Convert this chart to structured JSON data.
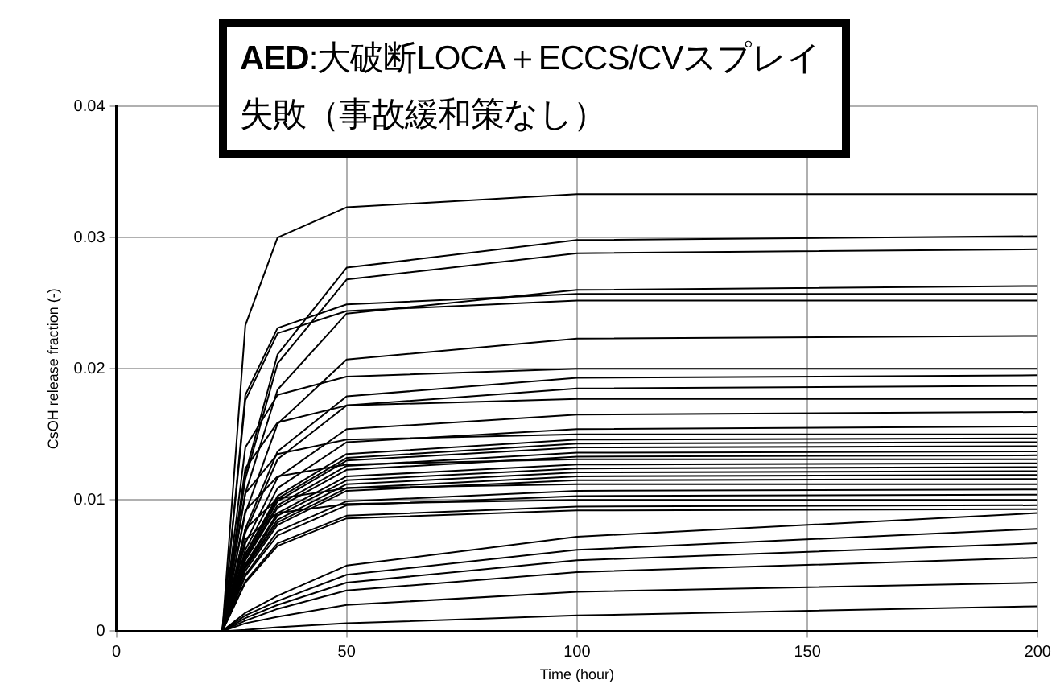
{
  "chart_data": {
    "type": "line",
    "title": "AED:大破断LOCA＋ECCS/CVスプレイ失敗（事故緩和策なし）",
    "xlabel": "Time (hour)",
    "ylabel": "CsOH release fraction (-)",
    "x": [
      0,
      23,
      28,
      35,
      50,
      100,
      200
    ],
    "xlim": [
      0,
      200
    ],
    "xticks": [
      0,
      50,
      100,
      150,
      200
    ],
    "ylim": [
      0,
      0.04
    ],
    "yticks": [
      0,
      0.01,
      0.02,
      0.03,
      0.04
    ],
    "grid": true,
    "legend": false,
    "marker": "none",
    "line_style": "solid",
    "series": [
      {
        "color": "#000000",
        "values": [
          0,
          0,
          0.0233,
          0.03,
          0.0323,
          0.0333,
          0.0333
        ]
      },
      {
        "color": "#000000",
        "values": [
          0,
          0,
          0.018,
          0.0231,
          0.0249,
          0.0257,
          0.0257
        ]
      },
      {
        "color": "#000000",
        "values": [
          0,
          0,
          0.0176,
          0.0227,
          0.0244,
          0.0252,
          0.0252
        ]
      },
      {
        "color": "#000000",
        "values": [
          0,
          0,
          0.014,
          0.018,
          0.0194,
          0.02,
          0.02
        ]
      },
      {
        "color": "#000000",
        "values": [
          0,
          0,
          0.0124,
          0.0159,
          0.0172,
          0.0177,
          0.0177
        ]
      },
      {
        "color": "#000000",
        "values": [
          0,
          0,
          0.0105,
          0.0135,
          0.0146,
          0.015,
          0.015
        ]
      },
      {
        "color": "#000000",
        "values": [
          0,
          0,
          0.0092,
          0.0118,
          0.0127,
          0.0131,
          0.0131
        ]
      },
      {
        "color": "#000000",
        "values": [
          0,
          0,
          0.0078,
          0.0101,
          0.0109,
          0.0112,
          0.0112
        ]
      },
      {
        "color": "#000000",
        "values": [
          0,
          0,
          0.007,
          0.009,
          0.0097,
          0.01,
          0.01
        ]
      },
      {
        "color": "#000000",
        "values": [
          0,
          0,
          0.012,
          0.0211,
          0.0277,
          0.0298,
          0.0301
        ]
      },
      {
        "color": "#000000",
        "values": [
          0,
          0,
          0.0116,
          0.0204,
          0.0268,
          0.0288,
          0.0291
        ]
      },
      {
        "color": "#000000",
        "values": [
          0,
          0,
          0.0105,
          0.0184,
          0.0242,
          0.026,
          0.0263
        ]
      },
      {
        "color": "#000000",
        "values": [
          0,
          0,
          0.009,
          0.0158,
          0.0207,
          0.0223,
          0.0225
        ]
      },
      {
        "color": "#000000",
        "values": [
          0,
          0,
          0.0078,
          0.0137,
          0.0179,
          0.0193,
          0.0195
        ]
      },
      {
        "color": "#000000",
        "values": [
          0,
          0,
          0.0075,
          0.0131,
          0.0172,
          0.0185,
          0.0187
        ]
      },
      {
        "color": "#000000",
        "values": [
          0,
          0,
          0.0067,
          0.0117,
          0.0154,
          0.0165,
          0.0167
        ]
      },
      {
        "color": "#000000",
        "values": [
          0,
          0,
          0.0062,
          0.0109,
          0.0144,
          0.0154,
          0.0156
        ]
      },
      {
        "color": "#000000",
        "values": [
          0,
          0,
          0.0059,
          0.0103,
          0.0135,
          0.0146,
          0.0147
        ]
      },
      {
        "color": "#000000",
        "values": [
          0,
          0,
          0.0058,
          0.0101,
          0.0132,
          0.0143,
          0.0144
        ]
      },
      {
        "color": "#000000",
        "values": [
          0,
          0,
          0.0056,
          0.0099,
          0.013,
          0.014,
          0.0141
        ]
      },
      {
        "color": "#000000",
        "values": [
          0,
          0,
          0.0055,
          0.0096,
          0.0126,
          0.0136,
          0.0137
        ]
      },
      {
        "color": "#000000",
        "values": [
          0,
          0,
          0.0054,
          0.0094,
          0.0123,
          0.0133,
          0.0134
        ]
      },
      {
        "color": "#000000",
        "values": [
          0,
          0,
          0.0051,
          0.009,
          0.0118,
          0.0127,
          0.0128
        ]
      },
      {
        "color": "#000000",
        "values": [
          0,
          0,
          0.005,
          0.0088,
          0.0115,
          0.0124,
          0.0125
        ]
      },
      {
        "color": "#000000",
        "values": [
          0,
          0,
          0.0049,
          0.0085,
          0.0112,
          0.0121,
          0.0122
        ]
      },
      {
        "color": "#000000",
        "values": [
          0,
          0,
          0.0048,
          0.0083,
          0.0109,
          0.0118,
          0.0119
        ]
      },
      {
        "color": "#000000",
        "values": [
          0,
          0,
          0.0046,
          0.0081,
          0.0107,
          0.0115,
          0.0116
        ]
      },
      {
        "color": "#000000",
        "values": [
          0,
          0,
          0.0043,
          0.0076,
          0.0099,
          0.0107,
          0.0108
        ]
      },
      {
        "color": "#000000",
        "values": [
          0,
          0,
          0.0042,
          0.0073,
          0.0096,
          0.0103,
          0.0104
        ]
      },
      {
        "color": "#000000",
        "values": [
          0,
          0,
          0.0038,
          0.0067,
          0.0088,
          0.0095,
          0.0096
        ]
      },
      {
        "color": "#000000",
        "values": [
          0,
          0,
          0.0037,
          0.0065,
          0.0086,
          0.0092,
          0.0093
        ]
      },
      {
        "color": "#000000",
        "values": [
          0,
          0,
          0.0014,
          0.0027,
          0.005,
          0.0072,
          0.009
        ]
      },
      {
        "color": "#000000",
        "values": [
          0,
          0,
          0.0012,
          0.0023,
          0.0043,
          0.0062,
          0.0078
        ]
      },
      {
        "color": "#000000",
        "values": [
          0,
          0,
          0.001,
          0.002,
          0.0037,
          0.0054,
          0.0067
        ]
      },
      {
        "color": "#000000",
        "values": [
          0,
          0,
          0.0008,
          0.0017,
          0.0031,
          0.0045,
          0.0056
        ]
      },
      {
        "color": "#000000",
        "values": [
          0,
          0,
          0.0006,
          0.0011,
          0.002,
          0.003,
          0.0037
        ]
      },
      {
        "color": "#000000",
        "values": [
          0,
          0,
          0.0001,
          0.0003,
          0.0006,
          0.0012,
          0.0019
        ]
      }
    ]
  }
}
